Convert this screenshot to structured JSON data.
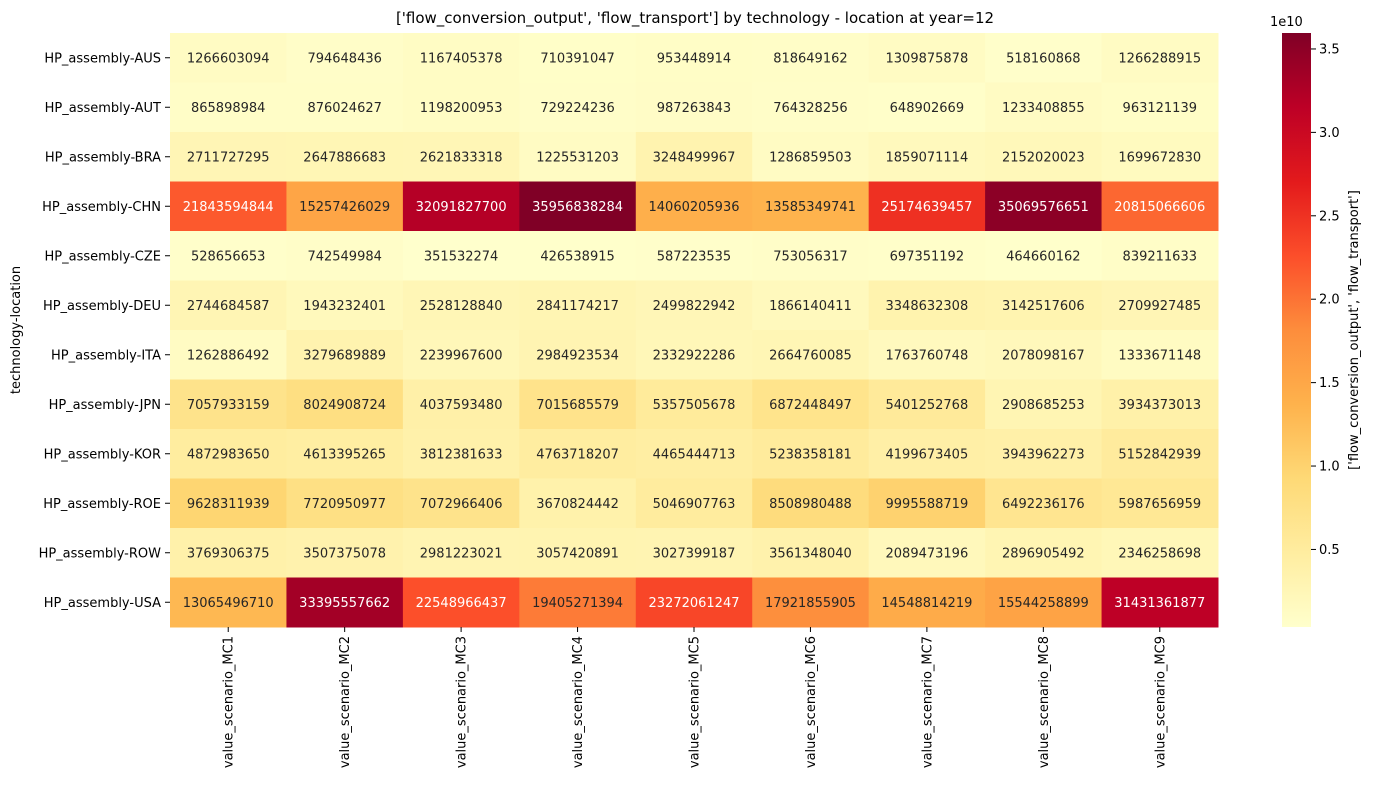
{
  "chart_data": {
    "type": "heatmap",
    "title": "['flow_conversion_output', 'flow_transport'] by technology - location at year=12",
    "ylabel": "technology-location",
    "xlabel": "",
    "colorbar_label": "['flow_conversion_output', 'flow_transport']",
    "colorbar_exponent": "1e10",
    "colormap": "YlOrRd",
    "color_stops": [
      "#ffffcc",
      "#ffeda0",
      "#fed976",
      "#feb24c",
      "#fd8d3c",
      "#fc4e2a",
      "#e31a1c",
      "#bd0026",
      "#800026"
    ],
    "vmin": 351532274,
    "vmax": 35956838284,
    "colorbar_ticks": [
      {
        "value": 5000000000,
        "label": "0.5"
      },
      {
        "value": 10000000000,
        "label": "1.0"
      },
      {
        "value": 15000000000,
        "label": "1.5"
      },
      {
        "value": 20000000000,
        "label": "2.0"
      },
      {
        "value": 25000000000,
        "label": "2.5"
      },
      {
        "value": 30000000000,
        "label": "3.0"
      },
      {
        "value": 35000000000,
        "label": "3.5"
      }
    ],
    "columns": [
      "value_scenario_MC1",
      "value_scenario_MC2",
      "value_scenario_MC3",
      "value_scenario_MC4",
      "value_scenario_MC5",
      "value_scenario_MC6",
      "value_scenario_MC7",
      "value_scenario_MC8",
      "value_scenario_MC9"
    ],
    "rows": [
      "HP_assembly-AUS",
      "HP_assembly-AUT",
      "HP_assembly-BRA",
      "HP_assembly-CHN",
      "HP_assembly-CZE",
      "HP_assembly-DEU",
      "HP_assembly-ITA",
      "HP_assembly-JPN",
      "HP_assembly-KOR",
      "HP_assembly-ROE",
      "HP_assembly-ROW",
      "HP_assembly-USA"
    ],
    "values": [
      [
        1266603094,
        794648436,
        1167405378,
        710391047,
        953448914,
        818649162,
        1309875878,
        518160868,
        1266288915
      ],
      [
        865898984,
        876024627,
        1198200953,
        729224236,
        987263843,
        764328256,
        648902669,
        1233408855,
        963121139
      ],
      [
        2711727295,
        2647886683,
        2621833318,
        1225531203,
        3248499967,
        1286859503,
        1859071114,
        2152020023,
        1699672830
      ],
      [
        21843594844,
        15257426029,
        32091827700,
        35956838284,
        14060205936,
        13585349741,
        25174639457,
        35069576651,
        20815066606
      ],
      [
        528656653,
        742549984,
        351532274,
        426538915,
        587223535,
        753056317,
        697351192,
        464660162,
        839211633
      ],
      [
        2744684587,
        1943232401,
        2528128840,
        2841174217,
        2499822942,
        1866140411,
        3348632308,
        3142517606,
        2709927485
      ],
      [
        1262886492,
        3279689889,
        2239967600,
        2984923534,
        2332922286,
        2664760085,
        1763760748,
        2078098167,
        1333671148
      ],
      [
        7057933159,
        8024908724,
        4037593480,
        7015685579,
        5357505678,
        6872448497,
        5401252768,
        2908685253,
        3934373013
      ],
      [
        4872983650,
        4613395265,
        3812381633,
        4763718207,
        4465444713,
        5238358181,
        4199673405,
        3943962273,
        5152842939
      ],
      [
        9628311939,
        7720950977,
        7072966406,
        3670824442,
        5046907763,
        8508980488,
        9995588719,
        6492236176,
        5987656959
      ],
      [
        3769306375,
        3507375078,
        2981223021,
        3057420891,
        3027399187,
        3561348040,
        2089473196,
        2896905492,
        2346258698
      ],
      [
        13065496710,
        33395557662,
        22548966437,
        19405271394,
        23272061247,
        17921855905,
        14548814219,
        15544258899,
        31431361877
      ]
    ]
  }
}
